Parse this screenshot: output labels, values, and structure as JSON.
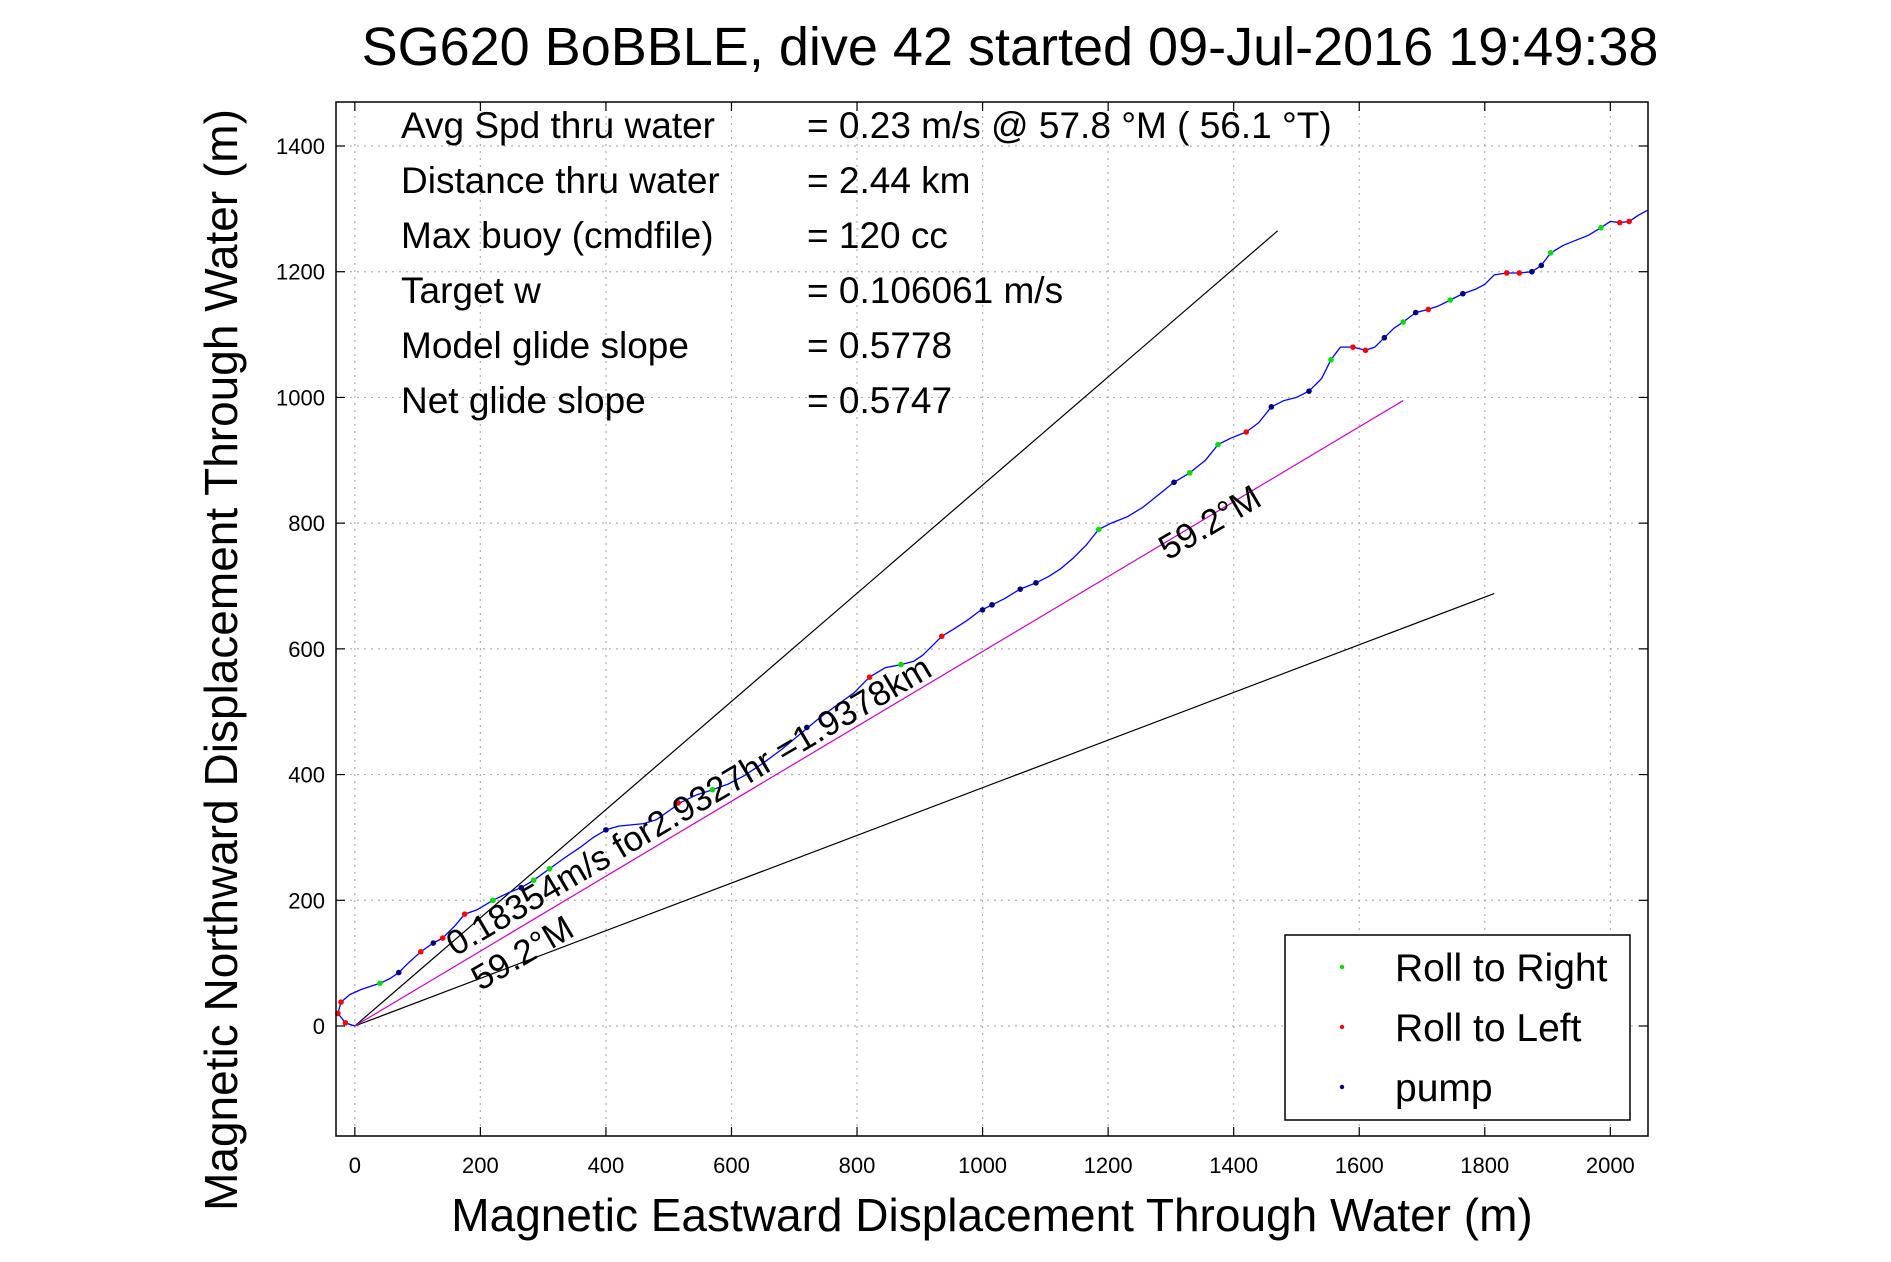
{
  "chart_data": {
    "type": "line",
    "title": "SG620 BoBBLE, dive 42 started 09-Jul-2016 19:49:38",
    "xlabel": "Magnetic Eastward Displacement Through Water (m)",
    "ylabel": "Magnetic Northward Displacement Through Water (m)",
    "xlim": [
      -30,
      2060
    ],
    "ylim": [
      -175,
      1470
    ],
    "xticks": [
      0,
      200,
      400,
      600,
      800,
      1000,
      1200,
      1400,
      1600,
      1800,
      2000
    ],
    "yticks": [
      0,
      200,
      400,
      600,
      800,
      1000,
      1200,
      1400
    ],
    "xtick_labels": [
      "0",
      "200",
      "400",
      "600",
      "800",
      "1000",
      "1200",
      "1400",
      "1600",
      "1800",
      "2000"
    ],
    "ytick_labels": [
      "0",
      "200",
      "400",
      "600",
      "800",
      "1000",
      "1200",
      "1400"
    ],
    "grid": true,
    "legend_position": "bottom-right",
    "stats": [
      {
        "label": "Avg Spd thru water",
        "value": "=  0.23 m/s @  57.8 °M ( 56.1 °T)"
      },
      {
        "label": "Distance thru water",
        "value": "=  2.44 km"
      },
      {
        "label": "Max buoy (cmdfile)",
        "value": "= 120 cc"
      },
      {
        "label": "Target w",
        "value": "= 0.106061 m/s"
      },
      {
        "label": "Model glide slope",
        "value": "= 0.5778"
      },
      {
        "label": "Net glide slope",
        "value": "= 0.5747"
      }
    ],
    "legend": [
      {
        "label": "Roll to Right",
        "color": "#00dd00"
      },
      {
        "label": "Roll to Left",
        "color": "#ff0000"
      },
      {
        "label": "pump",
        "color": "#000080"
      }
    ],
    "track": {
      "color": "#0000ff",
      "points": [
        [
          0,
          0
        ],
        [
          -15,
          5
        ],
        [
          -27,
          20
        ],
        [
          -22,
          38
        ],
        [
          -8,
          50
        ],
        [
          10,
          58
        ],
        [
          40,
          68
        ],
        [
          55,
          75
        ],
        [
          70,
          85
        ],
        [
          85,
          100
        ],
        [
          105,
          118
        ],
        [
          125,
          132
        ],
        [
          140,
          140
        ],
        [
          160,
          160
        ],
        [
          175,
          178
        ],
        [
          195,
          185
        ],
        [
          220,
          200
        ],
        [
          245,
          212
        ],
        [
          265,
          220
        ],
        [
          285,
          232
        ],
        [
          310,
          250
        ],
        [
          335,
          268
        ],
        [
          360,
          285
        ],
        [
          380,
          300
        ],
        [
          400,
          312
        ],
        [
          420,
          318
        ],
        [
          440,
          320
        ],
        [
          460,
          322
        ],
        [
          480,
          328
        ],
        [
          500,
          342
        ],
        [
          520,
          356
        ],
        [
          545,
          368
        ],
        [
          570,
          376
        ],
        [
          595,
          385
        ],
        [
          620,
          398
        ],
        [
          650,
          418
        ],
        [
          680,
          440
        ],
        [
          710,
          465
        ],
        [
          740,
          490
        ],
        [
          770,
          512
        ],
        [
          795,
          530
        ],
        [
          820,
          555
        ],
        [
          845,
          570
        ],
        [
          870,
          575
        ],
        [
          890,
          580
        ],
        [
          905,
          590
        ],
        [
          920,
          605
        ],
        [
          935,
          620
        ],
        [
          955,
          632
        ],
        [
          975,
          645
        ],
        [
          995,
          660
        ],
        [
          1015,
          670
        ],
        [
          1035,
          680
        ],
        [
          1060,
          695
        ],
        [
          1085,
          705
        ],
        [
          1105,
          715
        ],
        [
          1125,
          728
        ],
        [
          1145,
          745
        ],
        [
          1165,
          765
        ],
        [
          1185,
          790
        ],
        [
          1205,
          800
        ],
        [
          1230,
          810
        ],
        [
          1255,
          825
        ],
        [
          1280,
          845
        ],
        [
          1305,
          865
        ],
        [
          1330,
          880
        ],
        [
          1355,
          900
        ],
        [
          1375,
          925
        ],
        [
          1395,
          935
        ],
        [
          1420,
          945
        ],
        [
          1440,
          960
        ],
        [
          1460,
          985
        ],
        [
          1480,
          995
        ],
        [
          1500,
          1000
        ],
        [
          1520,
          1010
        ],
        [
          1540,
          1030
        ],
        [
          1555,
          1060
        ],
        [
          1570,
          1080
        ],
        [
          1590,
          1080
        ],
        [
          1610,
          1075
        ],
        [
          1625,
          1080
        ],
        [
          1640,
          1095
        ],
        [
          1655,
          1110
        ],
        [
          1670,
          1120
        ],
        [
          1690,
          1135
        ],
        [
          1710,
          1140
        ],
        [
          1725,
          1145
        ],
        [
          1745,
          1155
        ],
        [
          1765,
          1165
        ],
        [
          1785,
          1172
        ],
        [
          1800,
          1180
        ],
        [
          1815,
          1195
        ],
        [
          1835,
          1198
        ],
        [
          1855,
          1198
        ],
        [
          1875,
          1200
        ],
        [
          1890,
          1210
        ],
        [
          1905,
          1230
        ],
        [
          1925,
          1242
        ],
        [
          1945,
          1250
        ],
        [
          1965,
          1258
        ],
        [
          1985,
          1270
        ],
        [
          2000,
          1280
        ],
        [
          2015,
          1278
        ],
        [
          2030,
          1280
        ],
        [
          2045,
          1290
        ],
        [
          2060,
          1298
        ]
      ]
    },
    "roll_right_points": [
      [
        40,
        68
      ],
      [
        220,
        200
      ],
      [
        285,
        232
      ],
      [
        310,
        250
      ],
      [
        570,
        376
      ],
      [
        870,
        575
      ],
      [
        1185,
        790
      ],
      [
        1330,
        880
      ],
      [
        1375,
        925
      ],
      [
        1555,
        1060
      ],
      [
        1670,
        1120
      ],
      [
        1745,
        1155
      ],
      [
        1905,
        1230
      ],
      [
        1985,
        1270
      ]
    ],
    "roll_left_points": [
      [
        -22,
        38
      ],
      [
        -15,
        5
      ],
      [
        -27,
        20
      ],
      [
        105,
        118
      ],
      [
        140,
        140
      ],
      [
        175,
        178
      ],
      [
        515,
        355
      ],
      [
        820,
        555
      ],
      [
        935,
        620
      ],
      [
        1420,
        945
      ],
      [
        1590,
        1080
      ],
      [
        1610,
        1075
      ],
      [
        1710,
        1140
      ],
      [
        1835,
        1198
      ],
      [
        1855,
        1198
      ],
      [
        2015,
        1278
      ],
      [
        2030,
        1280
      ]
    ],
    "pump_points": [
      [
        70,
        85
      ],
      [
        125,
        132
      ],
      [
        265,
        220
      ],
      [
        400,
        312
      ],
      [
        720,
        475
      ],
      [
        1000,
        662
      ],
      [
        1015,
        670
      ],
      [
        1060,
        695
      ],
      [
        1085,
        705
      ],
      [
        1305,
        865
      ],
      [
        1460,
        985
      ],
      [
        1520,
        1010
      ],
      [
        1640,
        1095
      ],
      [
        1690,
        1135
      ],
      [
        1765,
        1165
      ],
      [
        1875,
        1200
      ],
      [
        1890,
        1210
      ]
    ],
    "reference_lines": [
      {
        "name": "upper",
        "color": "#000000",
        "x": [
          0,
          1470
        ],
        "y": [
          0,
          1265
        ]
      },
      {
        "name": "lower",
        "color": "#000000",
        "x": [
          0,
          1815
        ],
        "y": [
          0,
          688
        ]
      },
      {
        "name": "depth-averaged",
        "color": "#cc00cc",
        "x": [
          0,
          1670
        ],
        "y": [
          0,
          995
        ]
      }
    ],
    "annotations": [
      {
        "text": "0.18354m/s for2.9327hr =1.9378km",
        "x": 160,
        "y": 110,
        "angle": -30.5
      },
      {
        "text": "59.2°M",
        "x": 200,
        "y": 55,
        "angle": -30.5
      },
      {
        "text": "59.2°M",
        "x": 1295,
        "y": 740,
        "angle": -30.5
      }
    ]
  }
}
